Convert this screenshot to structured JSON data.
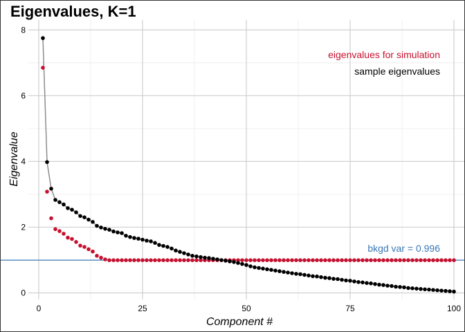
{
  "chart_data": {
    "type": "scatter",
    "title": "Eigenvalues, K=1",
    "xlabel": "Component #",
    "ylabel": "Eigenvalue",
    "xlim": [
      -2.5,
      102.5
    ],
    "ylim": [
      -0.2,
      8.3
    ],
    "x_ticks": [
      0,
      25,
      50,
      75,
      100
    ],
    "y_ticks": [
      0,
      2,
      4,
      6,
      8
    ],
    "grid": true,
    "series": [
      {
        "name": "eigenvalues for simulation",
        "color": "#c8102e",
        "marker": "point",
        "line": false,
        "x": [
          1,
          2,
          3,
          4,
          5,
          6,
          7,
          8,
          9,
          10,
          11,
          12,
          13,
          14,
          15,
          16,
          17,
          18,
          19,
          20,
          21,
          22,
          23,
          24,
          25,
          26,
          27,
          28,
          29,
          30,
          31,
          32,
          33,
          34,
          35,
          36,
          37,
          38,
          39,
          40,
          41,
          42,
          43,
          44,
          45,
          46,
          47,
          48,
          49,
          50,
          51,
          52,
          53,
          54,
          55,
          56,
          57,
          58,
          59,
          60,
          61,
          62,
          63,
          64,
          65,
          66,
          67,
          68,
          69,
          70,
          71,
          72,
          73,
          74,
          75,
          76,
          77,
          78,
          79,
          80,
          81,
          82,
          83,
          84,
          85,
          86,
          87,
          88,
          89,
          90,
          91,
          92,
          93,
          94,
          95,
          96,
          97,
          98,
          99,
          100
        ],
        "values": [
          6.85,
          3.08,
          2.27,
          1.94,
          1.88,
          1.8,
          1.68,
          1.64,
          1.55,
          1.44,
          1.4,
          1.33,
          1.26,
          1.13,
          1.07,
          1.02,
          0.996,
          0.996,
          0.996,
          0.996,
          0.996,
          0.996,
          0.996,
          0.996,
          0.996,
          0.996,
          0.996,
          0.996,
          0.996,
          0.996,
          0.996,
          0.996,
          0.996,
          0.996,
          0.996,
          0.996,
          0.996,
          0.996,
          0.996,
          0.996,
          0.996,
          0.996,
          0.996,
          0.996,
          0.996,
          0.996,
          0.996,
          0.996,
          0.996,
          0.996,
          0.996,
          0.996,
          0.996,
          0.996,
          0.996,
          0.996,
          0.996,
          0.996,
          0.996,
          0.996,
          0.996,
          0.996,
          0.996,
          0.996,
          0.996,
          0.996,
          0.996,
          0.996,
          0.996,
          0.996,
          0.996,
          0.996,
          0.996,
          0.996,
          0.996,
          0.996,
          0.996,
          0.996,
          0.996,
          0.996,
          0.996,
          0.996,
          0.996,
          0.996,
          0.996,
          0.996,
          0.996,
          0.996,
          0.996,
          0.996,
          0.996,
          0.996,
          0.996,
          0.996,
          0.996,
          0.996,
          0.996,
          0.996,
          0.996,
          0.996
        ]
      },
      {
        "name": "sample eigenvalues",
        "color": "#000000",
        "marker": "point",
        "line": true,
        "line_color": "#8c8c8c",
        "x": [
          1,
          2,
          3,
          4,
          5,
          6,
          7,
          8,
          9,
          10,
          11,
          12,
          13,
          14,
          15,
          16,
          17,
          18,
          19,
          20,
          21,
          22,
          23,
          24,
          25,
          26,
          27,
          28,
          29,
          30,
          31,
          32,
          33,
          34,
          35,
          36,
          37,
          38,
          39,
          40,
          41,
          42,
          43,
          44,
          45,
          46,
          47,
          48,
          49,
          50,
          51,
          52,
          53,
          54,
          55,
          56,
          57,
          58,
          59,
          60,
          61,
          62,
          63,
          64,
          65,
          66,
          67,
          68,
          69,
          70,
          71,
          72,
          73,
          74,
          75,
          76,
          77,
          78,
          79,
          80,
          81,
          82,
          83,
          84,
          85,
          86,
          87,
          88,
          89,
          90,
          91,
          92,
          93,
          94,
          95,
          96,
          97,
          98,
          99,
          100
        ],
        "values": [
          7.75,
          3.98,
          3.17,
          2.83,
          2.76,
          2.69,
          2.58,
          2.53,
          2.45,
          2.34,
          2.3,
          2.23,
          2.16,
          2.04,
          1.99,
          1.95,
          1.92,
          1.87,
          1.84,
          1.82,
          1.74,
          1.7,
          1.67,
          1.65,
          1.62,
          1.59,
          1.57,
          1.52,
          1.46,
          1.43,
          1.4,
          1.35,
          1.29,
          1.25,
          1.21,
          1.17,
          1.13,
          1.11,
          1.09,
          1.07,
          1.06,
          1.04,
          1.02,
          1.0,
          0.98,
          0.96,
          0.94,
          0.91,
          0.88,
          0.85,
          0.81,
          0.78,
          0.76,
          0.74,
          0.72,
          0.7,
          0.68,
          0.66,
          0.64,
          0.62,
          0.6,
          0.58,
          0.57,
          0.55,
          0.53,
          0.51,
          0.5,
          0.48,
          0.46,
          0.45,
          0.43,
          0.42,
          0.4,
          0.38,
          0.37,
          0.35,
          0.33,
          0.32,
          0.3,
          0.29,
          0.27,
          0.25,
          0.24,
          0.22,
          0.21,
          0.19,
          0.18,
          0.17,
          0.15,
          0.14,
          0.13,
          0.12,
          0.11,
          0.1,
          0.09,
          0.08,
          0.07,
          0.06,
          0.05,
          0.04
        ]
      }
    ],
    "hline": {
      "y": 0.996,
      "label": "bkgd var = 0.996",
      "color": "#3a78b7"
    }
  }
}
